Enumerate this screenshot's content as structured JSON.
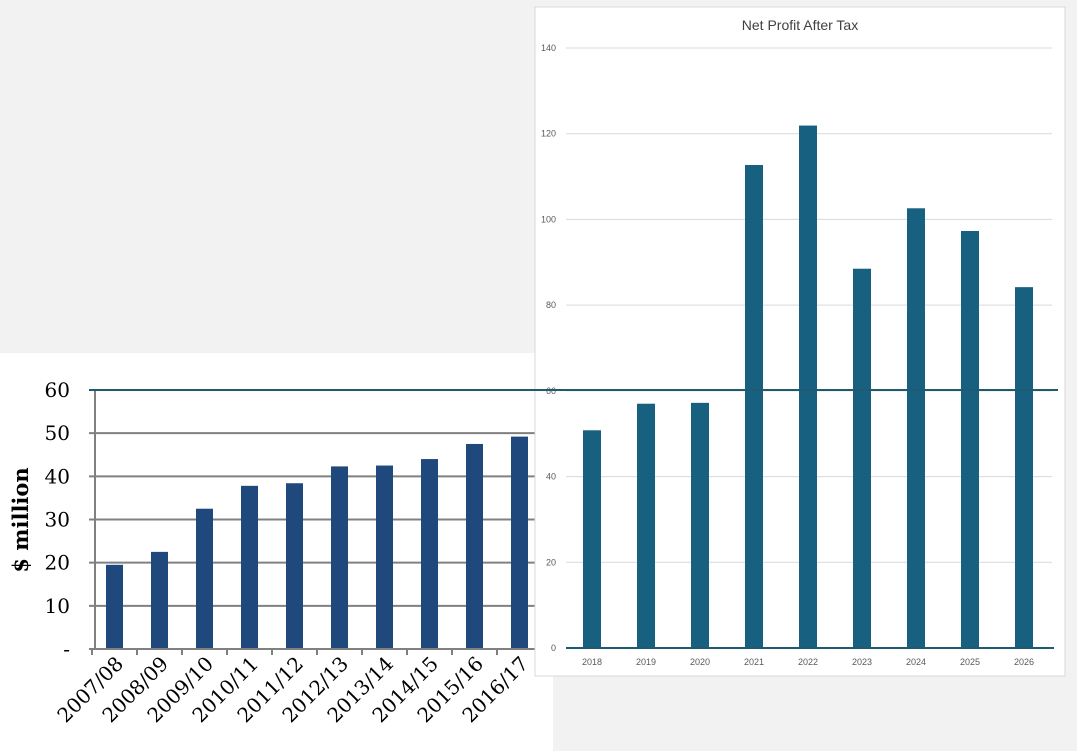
{
  "colors": {
    "background": "#f2f2f2",
    "left_bar": "#1f497d",
    "left_grid": "#808080",
    "right_bar": "#17607f",
    "right_grid": "#d9d9d9",
    "right_axis": "#1f5a70",
    "right_text": "#595959"
  },
  "chart_data": [
    {
      "type": "bar",
      "title": "",
      "xlabel": "",
      "ylabel": "$ million",
      "ylim": [
        0,
        60
      ],
      "yticks": [
        0,
        10,
        20,
        30,
        40,
        50,
        60
      ],
      "ytick_labels": [
        "-",
        "10",
        "20",
        "30",
        "40",
        "50",
        "60"
      ],
      "grid": true,
      "categories": [
        "2007/08",
        "2008/09",
        "2009/10",
        "2010/11",
        "2011/12",
        "2012/13",
        "2013/14",
        "2014/15",
        "2015/16",
        "2016/17"
      ],
      "values": [
        19.5,
        22.5,
        32.5,
        37.8,
        38.4,
        42.3,
        42.5,
        44.0,
        47.5,
        49.2
      ]
    },
    {
      "type": "bar",
      "title": "Net Profit After Tax",
      "xlabel": "",
      "ylabel": "",
      "ylim": [
        0,
        140
      ],
      "yticks": [
        0,
        20,
        40,
        60,
        80,
        100,
        120,
        140
      ],
      "ytick_labels": [
        "0",
        "20",
        "40",
        "60",
        "80",
        "100",
        "120",
        "140"
      ],
      "grid": true,
      "categories": [
        "2018",
        "2019",
        "2020",
        "2021",
        "2022",
        "2023",
        "2024",
        "2025",
        "2026"
      ],
      "values": [
        50.8,
        57.0,
        57.2,
        112.7,
        121.9,
        88.5,
        102.6,
        97.3,
        84.2
      ]
    }
  ]
}
